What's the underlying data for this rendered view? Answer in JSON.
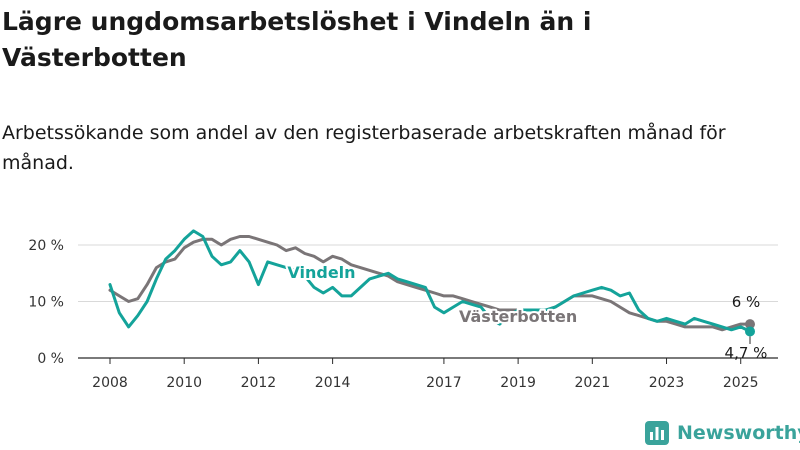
{
  "title": "Lägre ungdomsarbetslöshet i Vindeln än i Västerbotten",
  "subtitle": "Arbetssökande som andel av den registerbaserade arbetskraften månad för månad.",
  "brand": "Newsworthy",
  "colors": {
    "vindeln": "#14a39a",
    "vasterbotten": "#7a7577",
    "brand": "#3aa39b"
  },
  "chart_data": {
    "type": "line",
    "title": "Lägre ungdomsarbetslöshet i Vindeln än i Västerbotten",
    "subtitle": "Arbetssökande som andel av den registerbaserade arbetskraften månad för månad.",
    "xlabel": "",
    "ylabel": "",
    "x_ticks": [
      2008,
      2010,
      2012,
      2014,
      2017,
      2019,
      2021,
      2023,
      2025
    ],
    "y_ticks": [
      0,
      10,
      20
    ],
    "y_tick_labels": [
      "0 %",
      "10 %",
      "20 %"
    ],
    "ylim": [
      0,
      22
    ],
    "grid": "horizontal",
    "legend": "inline labels",
    "series": [
      {
        "name": "Vindeln",
        "color": "#14a39a",
        "end_label": "4,7 %",
        "points": [
          [
            2008.0,
            13.0
          ],
          [
            2008.25,
            8.0
          ],
          [
            2008.5,
            5.5
          ],
          [
            2008.75,
            7.5
          ],
          [
            2009.0,
            10.0
          ],
          [
            2009.25,
            14.0
          ],
          [
            2009.5,
            17.5
          ],
          [
            2009.75,
            19.0
          ],
          [
            2010.0,
            21.0
          ],
          [
            2010.25,
            22.5
          ],
          [
            2010.5,
            21.5
          ],
          [
            2010.75,
            18.0
          ],
          [
            2011.0,
            16.5
          ],
          [
            2011.25,
            17.0
          ],
          [
            2011.5,
            19.0
          ],
          [
            2011.75,
            17.0
          ],
          [
            2012.0,
            13.0
          ],
          [
            2012.25,
            17.0
          ],
          [
            2012.5,
            16.5
          ],
          [
            2012.75,
            16.0
          ],
          [
            2013.0,
            15.5
          ],
          [
            2013.25,
            14.5
          ],
          [
            2013.5,
            12.5
          ],
          [
            2013.75,
            11.5
          ],
          [
            2014.0,
            12.5
          ],
          [
            2014.25,
            11.0
          ],
          [
            2014.5,
            11.0
          ],
          [
            2015.0,
            14.0
          ],
          [
            2015.5,
            15.0
          ],
          [
            2015.75,
            14.0
          ],
          [
            2016.0,
            13.5
          ],
          [
            2016.25,
            13.0
          ],
          [
            2016.5,
            12.5
          ],
          [
            2016.75,
            9.0
          ],
          [
            2017.0,
            8.0
          ],
          [
            2017.25,
            9.0
          ],
          [
            2017.5,
            10.0
          ],
          [
            2017.75,
            9.5
          ],
          [
            2018.0,
            9.0
          ],
          [
            2018.25,
            7.0
          ],
          [
            2018.5,
            6.0
          ],
          [
            2018.75,
            7.5
          ],
          [
            2019.0,
            8.5
          ],
          [
            2019.25,
            8.5
          ],
          [
            2019.5,
            8.5
          ],
          [
            2019.75,
            8.5
          ],
          [
            2020.0,
            9.0
          ],
          [
            2020.25,
            10.0
          ],
          [
            2020.5,
            11.0
          ],
          [
            2020.75,
            11.5
          ],
          [
            2021.0,
            12.0
          ],
          [
            2021.25,
            12.5
          ],
          [
            2021.5,
            12.0
          ],
          [
            2021.75,
            11.0
          ],
          [
            2022.0,
            11.5
          ],
          [
            2022.25,
            8.5
          ],
          [
            2022.5,
            7.0
          ],
          [
            2022.75,
            6.5
          ],
          [
            2023.0,
            7.0
          ],
          [
            2023.25,
            6.5
          ],
          [
            2023.5,
            6.0
          ],
          [
            2023.75,
            7.0
          ],
          [
            2024.0,
            6.5
          ],
          [
            2024.25,
            6.0
          ],
          [
            2024.5,
            5.5
          ],
          [
            2024.75,
            5.0
          ],
          [
            2025.0,
            5.5
          ],
          [
            2025.25,
            4.7
          ]
        ]
      },
      {
        "name": "Västerbotten",
        "color": "#7a7577",
        "end_label": "6 %",
        "points": [
          [
            2008.0,
            12.0
          ],
          [
            2008.25,
            11.0
          ],
          [
            2008.5,
            10.0
          ],
          [
            2008.75,
            10.5
          ],
          [
            2009.0,
            13.0
          ],
          [
            2009.25,
            16.0
          ],
          [
            2009.5,
            17.0
          ],
          [
            2009.75,
            17.5
          ],
          [
            2010.0,
            19.5
          ],
          [
            2010.25,
            20.5
          ],
          [
            2010.5,
            21.0
          ],
          [
            2010.75,
            21.0
          ],
          [
            2011.0,
            20.0
          ],
          [
            2011.25,
            21.0
          ],
          [
            2011.5,
            21.5
          ],
          [
            2011.75,
            21.5
          ],
          [
            2012.0,
            21.0
          ],
          [
            2012.25,
            20.5
          ],
          [
            2012.5,
            20.0
          ],
          [
            2012.75,
            19.0
          ],
          [
            2013.0,
            19.5
          ],
          [
            2013.25,
            18.5
          ],
          [
            2013.5,
            18.0
          ],
          [
            2013.75,
            17.0
          ],
          [
            2014.0,
            18.0
          ],
          [
            2014.25,
            17.5
          ],
          [
            2014.5,
            16.5
          ],
          [
            2015.0,
            15.5
          ],
          [
            2015.5,
            14.5
          ],
          [
            2015.75,
            13.5
          ],
          [
            2016.0,
            13.0
          ],
          [
            2016.25,
            12.5
          ],
          [
            2016.5,
            12.0
          ],
          [
            2016.75,
            11.5
          ],
          [
            2017.0,
            11.0
          ],
          [
            2017.25,
            11.0
          ],
          [
            2017.5,
            10.5
          ],
          [
            2017.75,
            10.0
          ],
          [
            2018.0,
            9.5
          ],
          [
            2018.25,
            9.0
          ],
          [
            2018.5,
            8.5
          ],
          [
            2018.75,
            8.5
          ],
          [
            2019.0,
            8.5
          ],
          [
            2019.25,
            8.5
          ],
          [
            2019.5,
            8.5
          ],
          [
            2019.75,
            8.5
          ],
          [
            2020.0,
            9.0
          ],
          [
            2020.25,
            10.0
          ],
          [
            2020.5,
            11.0
          ],
          [
            2020.75,
            11.0
          ],
          [
            2021.0,
            11.0
          ],
          [
            2021.25,
            10.5
          ],
          [
            2021.5,
            10.0
          ],
          [
            2021.75,
            9.0
          ],
          [
            2022.0,
            8.0
          ],
          [
            2022.25,
            7.5
          ],
          [
            2022.5,
            7.0
          ],
          [
            2022.75,
            6.5
          ],
          [
            2023.0,
            6.5
          ],
          [
            2023.25,
            6.0
          ],
          [
            2023.5,
            5.5
          ],
          [
            2023.75,
            5.5
          ],
          [
            2024.0,
            5.5
          ],
          [
            2024.25,
            5.5
          ],
          [
            2024.5,
            5.0
          ],
          [
            2024.75,
            5.5
          ],
          [
            2025.0,
            6.0
          ],
          [
            2025.25,
            6.0
          ]
        ]
      }
    ]
  }
}
